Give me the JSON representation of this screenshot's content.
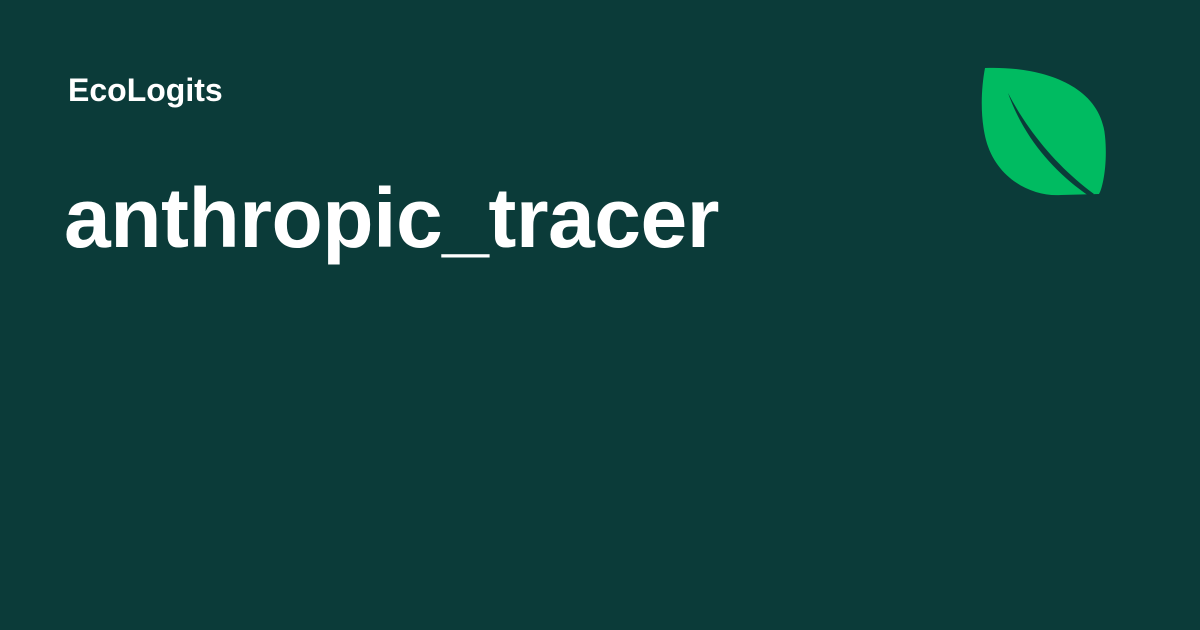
{
  "header": {
    "site_name": "EcoLogits"
  },
  "main": {
    "title": "anthropic_tracer"
  },
  "icons": {
    "logo": "leaf-icon"
  },
  "colors": {
    "background": "#0b3b39",
    "text": "#ffffff",
    "accent": "#00bb61"
  }
}
